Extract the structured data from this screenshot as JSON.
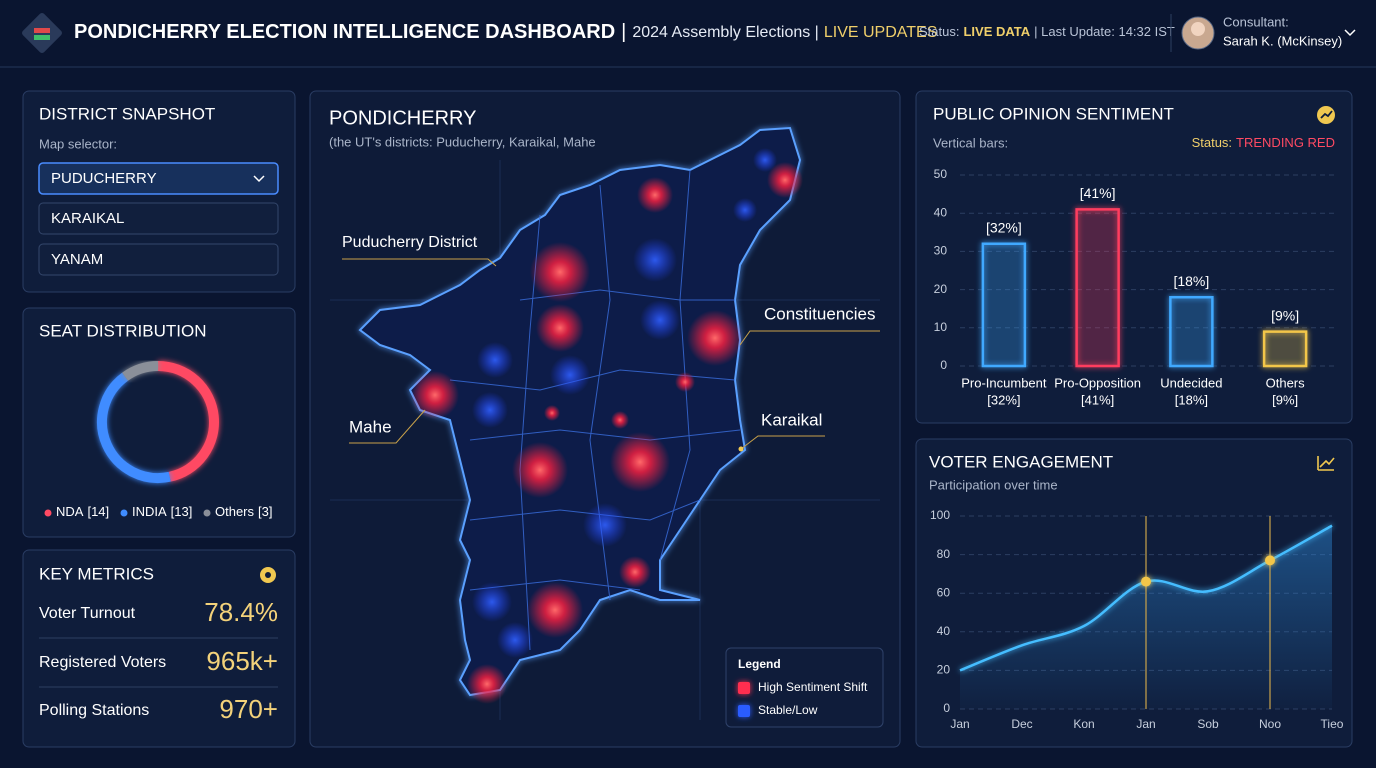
{
  "header": {
    "title": "PONDICHERRY ELECTION INTELLIGENCE DASHBOARD",
    "separator": "|",
    "subtitle": "2024 Assembly Elections |",
    "live": "LIVE UPDATES",
    "status_label": "Status:",
    "status_value": "LIVE DATA",
    "last_update": "| Last Update: 14:32 IST",
    "consultant_label": "Consultant:",
    "consultant_name": "Sarah K. (McKinsey)"
  },
  "district_snapshot": {
    "title": "DISTRICT SNAPSHOT",
    "label": "Map selector:",
    "options": [
      "PUDUCHERRY",
      "KARAIKAL",
      "YANAM"
    ]
  },
  "key_metrics": {
    "title": "KEY METRICS",
    "rows": [
      {
        "label": "Voter Turnout",
        "value": "78.4%"
      },
      {
        "label": "Registered Voters",
        "value": "965k+"
      },
      {
        "label": "Polling Stations",
        "value": "970+"
      }
    ]
  },
  "map": {
    "title": "PONDICHERRY",
    "subtitle": "(the UT's districts: Puducherry, Karaikal, Mahe",
    "labels": [
      "Puducherry District",
      "Constituencies",
      "Mahe",
      "Karaikal"
    ],
    "legend_title": "Legend",
    "legend": [
      {
        "name": "High Sentiment Shift",
        "color": "#ff2f4f"
      },
      {
        "name": "Stable/Low",
        "color": "#2a5cff"
      }
    ]
  },
  "chart_data": [
    {
      "type": "donut",
      "title": "SEAT DISTRIBUTION",
      "categories": [
        "NDA",
        "INDIA",
        "Others"
      ],
      "values": [
        14,
        13,
        3
      ],
      "value_labels": [
        "[14]",
        "[13]",
        "[3]"
      ],
      "colors": [
        "#ff4a63",
        "#3f8cff",
        "#8a8f99"
      ]
    },
    {
      "type": "bar",
      "title": "PUBLIC OPINION SENTIMENT",
      "subtitle": "Vertical bars:",
      "status_label": "Status:",
      "status_value": "TRENDING RED",
      "categories": [
        "Pro-Incumbent",
        "Pro-Opposition",
        "Undecided",
        "Others"
      ],
      "values": [
        32,
        41,
        18,
        9
      ],
      "value_labels": [
        "[32%]",
        "[41%]",
        "[18%]",
        "[9%]"
      ],
      "colors": [
        "#3fa9ff",
        "#ff3d5e",
        "#3fa9ff",
        "#f3c64a"
      ],
      "ylim": [
        0,
        50
      ],
      "yticks": [
        0,
        10,
        20,
        30,
        40,
        50
      ],
      "grid": true
    },
    {
      "type": "line",
      "title": "VOTER ENGAGEMENT",
      "subtitle": "Participation over time",
      "categories": [
        "Jan",
        "Dec",
        "Kon",
        "Jan",
        "Sob",
        "Noo",
        "Tieo"
      ],
      "values": [
        20,
        33,
        43,
        66,
        61,
        77,
        95
      ],
      "color": "#45bdff",
      "ylim": [
        0,
        100
      ],
      "yticks": [
        0,
        20,
        40,
        60,
        80,
        100
      ],
      "grid": true,
      "highlight": [
        3,
        5
      ]
    }
  ]
}
